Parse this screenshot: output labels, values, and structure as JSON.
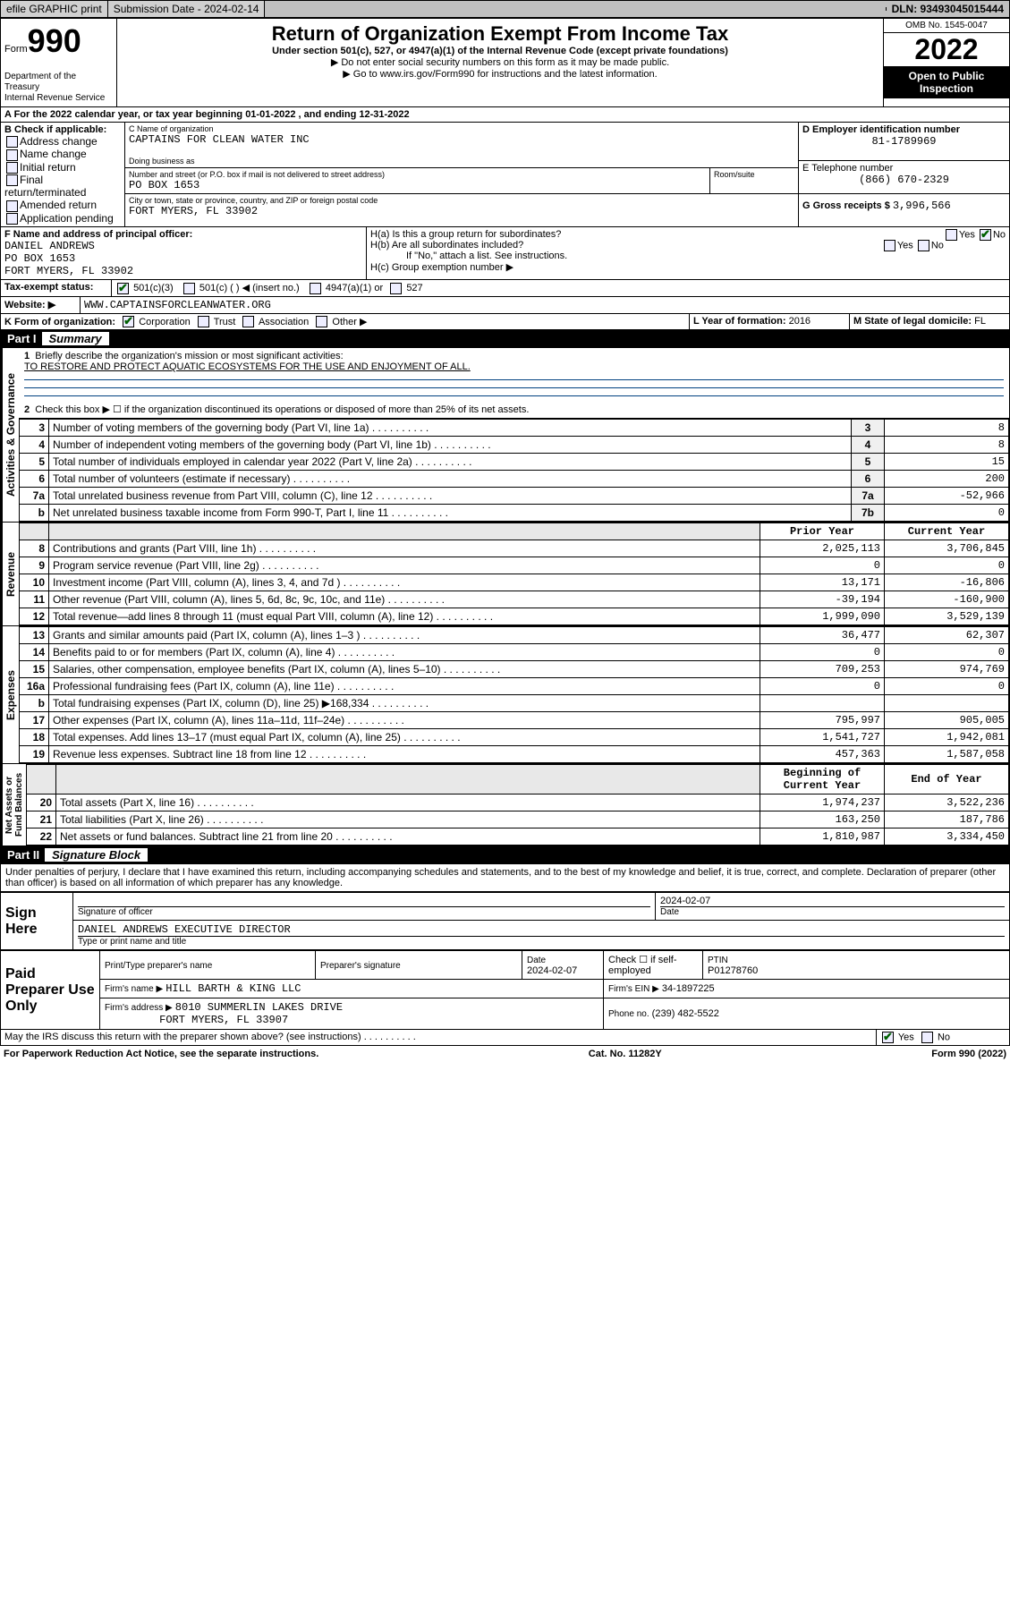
{
  "topbar": {
    "efile": "efile GRAPHIC print",
    "submission_label": "Submission Date - 2024-02-14",
    "dln": "DLN: 93493045015444"
  },
  "hdr": {
    "form_prefix": "Form",
    "form_no": "990",
    "title": "Return of Organization Exempt From Income Tax",
    "sub": "Under section 501(c), 527, or 4947(a)(1) of the Internal Revenue Code (except private foundations)",
    "arrow1": "▶ Do not enter social security numbers on this form as it may be made public.",
    "arrow2": "▶ Go to www.irs.gov/Form990 for instructions and the latest information.",
    "dept": "Department of the Treasury",
    "irs": "Internal Revenue Service",
    "omb": "OMB No. 1545-0047",
    "year": "2022",
    "inspection": "Open to Public Inspection"
  },
  "A": {
    "line": "A For the 2022 calendar year, or tax year beginning 01-01-2022   , and ending 12-31-2022"
  },
  "B": {
    "label": "B Check if applicable:",
    "opts": [
      "Address change",
      "Name change",
      "Initial return",
      "Final return/terminated",
      "Amended return",
      "Application pending"
    ]
  },
  "C": {
    "name_lbl": "C Name of organization",
    "name": "CAPTAINS FOR CLEAN WATER INC",
    "dba_lbl": "Doing business as",
    "street_lbl": "Number and street (or P.O. box if mail is not delivered to street address)",
    "suite_lbl": "Room/suite",
    "street": "PO BOX 1653",
    "city_lbl": "City or town, state or province, country, and ZIP or foreign postal code",
    "city": "FORT MYERS, FL  33902"
  },
  "D": {
    "lbl": "D Employer identification number",
    "val": "81-1789969"
  },
  "E": {
    "lbl": "E Telephone number",
    "val": "(866) 670-2329"
  },
  "G": {
    "lbl": "G Gross receipts $",
    "val": "3,996,566"
  },
  "F": {
    "lbl": "F Name and address of principal officer:",
    "name": "DANIEL ANDREWS",
    "addr1": "PO BOX 1653",
    "addr2": "FORT MYERS, FL  33902"
  },
  "H": {
    "a": "H(a)  Is this a group return for subordinates?",
    "b": "H(b)  Are all subordinates included?",
    "note": "If \"No,\" attach a list. See instructions.",
    "c": "H(c)  Group exemption number ▶"
  },
  "I": {
    "lbl": "Tax-exempt status:",
    "c3": "501(c)(3)",
    "c": "501(c) (  ) ◀ (insert no.)",
    "a4947": "4947(a)(1) or",
    "s527": "527"
  },
  "J": {
    "lbl": "Website: ▶",
    "val": "WWW.CAPTAINSFORCLEANWATER.ORG"
  },
  "K": {
    "lbl": "K Form of organization:",
    "corp": "Corporation",
    "trust": "Trust",
    "assoc": "Association",
    "other": "Other ▶"
  },
  "L": {
    "lbl": "L Year of formation:",
    "val": "2016"
  },
  "M": {
    "lbl": "M State of legal domicile:",
    "val": "FL"
  },
  "partI": {
    "title": "Part I",
    "name": "Summary"
  },
  "q1": {
    "lbl": "Briefly describe the organization's mission or most significant activities:",
    "val": "TO RESTORE AND PROTECT AQUATIC ECOSYSTEMS FOR THE USE AND ENJOYMENT OF ALL."
  },
  "q2": "Check this box ▶ ☐  if the organization discontinued its operations or disposed of more than 25% of its net assets.",
  "lines_gov": [
    {
      "n": "3",
      "d": "Number of voting members of the governing body (Part VI, line 1a)",
      "k": "3",
      "v": "8"
    },
    {
      "n": "4",
      "d": "Number of independent voting members of the governing body (Part VI, line 1b)",
      "k": "4",
      "v": "8"
    },
    {
      "n": "5",
      "d": "Total number of individuals employed in calendar year 2022 (Part V, line 2a)",
      "k": "5",
      "v": "15"
    },
    {
      "n": "6",
      "d": "Total number of volunteers (estimate if necessary)",
      "k": "6",
      "v": "200"
    },
    {
      "n": "7a",
      "d": "Total unrelated business revenue from Part VIII, column (C), line 12",
      "k": "7a",
      "v": "-52,966"
    },
    {
      "n": "b",
      "d": "Net unrelated business taxable income from Form 990-T, Part I, line 11",
      "k": "7b",
      "v": "0"
    }
  ],
  "col_hdr": {
    "py": "Prior Year",
    "cy": "Current Year",
    "bcy": "Beginning of Current Year",
    "eoy": "End of Year"
  },
  "lines_rev": [
    {
      "n": "8",
      "d": "Contributions and grants (Part VIII, line 1h)",
      "p": "2,025,113",
      "c": "3,706,845"
    },
    {
      "n": "9",
      "d": "Program service revenue (Part VIII, line 2g)",
      "p": "0",
      "c": "0"
    },
    {
      "n": "10",
      "d": "Investment income (Part VIII, column (A), lines 3, 4, and 7d )",
      "p": "13,171",
      "c": "-16,806"
    },
    {
      "n": "11",
      "d": "Other revenue (Part VIII, column (A), lines 5, 6d, 8c, 9c, 10c, and 11e)",
      "p": "-39,194",
      "c": "-160,900"
    },
    {
      "n": "12",
      "d": "Total revenue—add lines 8 through 11 (must equal Part VIII, column (A), line 12)",
      "p": "1,999,090",
      "c": "3,529,139"
    }
  ],
  "lines_exp": [
    {
      "n": "13",
      "d": "Grants and similar amounts paid (Part IX, column (A), lines 1–3 )",
      "p": "36,477",
      "c": "62,307"
    },
    {
      "n": "14",
      "d": "Benefits paid to or for members (Part IX, column (A), line 4)",
      "p": "0",
      "c": "0"
    },
    {
      "n": "15",
      "d": "Salaries, other compensation, employee benefits (Part IX, column (A), lines 5–10)",
      "p": "709,253",
      "c": "974,769"
    },
    {
      "n": "16a",
      "d": "Professional fundraising fees (Part IX, column (A), line 11e)",
      "p": "0",
      "c": "0"
    },
    {
      "n": "b",
      "d": "Total fundraising expenses (Part IX, column (D), line 25) ▶168,334",
      "p": "",
      "c": ""
    },
    {
      "n": "17",
      "d": "Other expenses (Part IX, column (A), lines 11a–11d, 11f–24e)",
      "p": "795,997",
      "c": "905,005"
    },
    {
      "n": "18",
      "d": "Total expenses. Add lines 13–17 (must equal Part IX, column (A), line 25)",
      "p": "1,541,727",
      "c": "1,942,081"
    },
    {
      "n": "19",
      "d": "Revenue less expenses. Subtract line 18 from line 12",
      "p": "457,363",
      "c": "1,587,058"
    }
  ],
  "lines_na": [
    {
      "n": "20",
      "d": "Total assets (Part X, line 16)",
      "p": "1,974,237",
      "c": "3,522,236"
    },
    {
      "n": "21",
      "d": "Total liabilities (Part X, line 26)",
      "p": "163,250",
      "c": "187,786"
    },
    {
      "n": "22",
      "d": "Net assets or fund balances. Subtract line 21 from line 20",
      "p": "1,810,987",
      "c": "3,334,450"
    }
  ],
  "partII": {
    "title": "Part II",
    "name": "Signature Block"
  },
  "penalty": "Under penalties of perjury, I declare that I have examined this return, including accompanying schedules and statements, and to the best of my knowledge and belief, it is true, correct, and complete. Declaration of preparer (other than officer) is based on all information of which preparer has any knowledge.",
  "sign": {
    "here": "Sign Here",
    "sig_lbl": "Signature of officer",
    "date": "2024-02-07",
    "name": "DANIEL ANDREWS  EXECUTIVE DIRECTOR",
    "name_lbl": "Type or print name and title"
  },
  "paid": {
    "title": "Paid Preparer Use Only",
    "name_lbl": "Print/Type preparer's name",
    "sig_lbl": "Preparer's signature",
    "date_lbl": "Date",
    "date": "2024-02-07",
    "check_lbl": "Check ☐ if self-employed",
    "ptin_lbl": "PTIN",
    "ptin": "P01278760",
    "firm_name_lbl": "Firm's name   ▶",
    "firm_name": "HILL BARTH & KING LLC",
    "firm_ein_lbl": "Firm's EIN ▶",
    "firm_ein": "34-1897225",
    "firm_addr_lbl": "Firm's address ▶",
    "firm_addr1": "8010 SUMMERLIN LAKES DRIVE",
    "firm_addr2": "FORT MYERS, FL  33907",
    "phone_lbl": "Phone no.",
    "phone": "(239) 482-5522"
  },
  "discuss": "May the IRS discuss this return with the preparer shown above? (see instructions)",
  "foot": {
    "pra": "For Paperwork Reduction Act Notice, see the separate instructions.",
    "cat": "Cat. No. 11282Y",
    "form": "Form 990 (2022)"
  }
}
